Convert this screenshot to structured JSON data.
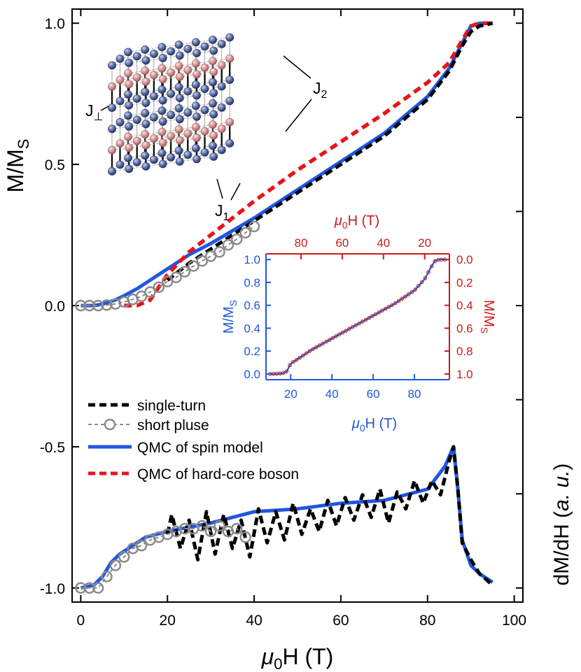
{
  "chart_data": [
    {
      "type": "line",
      "panel": "main",
      "xlabel_mu": "μ",
      "xlabel_sub": "0",
      "xlabel_rest": "H (T)",
      "ylabel_main": "M/M",
      "ylabel_sub": "S",
      "ylabel_right": "dM/dH (",
      "ylabel_right_italic": "a. u.",
      "ylabel_right_close": ")",
      "xlim": [
        -2,
        102
      ],
      "ylim": [
        -1.05,
        1.05
      ],
      "xticks": [
        0,
        20,
        40,
        60,
        80,
        100
      ],
      "xtick_labels": [
        "0",
        "20",
        "40",
        "60",
        "80",
        "100"
      ],
      "yticks": [
        1.0,
        0.5,
        0.0,
        -0.5,
        -1.0
      ],
      "ytick_labels": [
        "1.0",
        "0.5",
        "0.0",
        "-0.5",
        "-1.0"
      ],
      "legend": [
        {
          "label": "single-turn",
          "color": "#000000",
          "style": "dashed"
        },
        {
          "label": "short pluse",
          "color": "#8a8a8a",
          "style": "dashed-circle"
        },
        {
          "label": "QMC of spin model",
          "color": "#1f57e0",
          "style": "solid"
        },
        {
          "label": "QMC of hard-core boson",
          "color": "#e8141b",
          "style": "dashed"
        }
      ],
      "series": [
        {
          "name": "QMC of spin model (M)",
          "color": "#1f57e0",
          "x": [
            0,
            3,
            5,
            8,
            10,
            13,
            16,
            20,
            25,
            30,
            40,
            50,
            60,
            70,
            80,
            85,
            88,
            90,
            92,
            95
          ],
          "y": [
            0,
            0,
            0.005,
            0.02,
            0.035,
            0.06,
            0.09,
            0.13,
            0.18,
            0.22,
            0.31,
            0.41,
            0.51,
            0.61,
            0.74,
            0.84,
            0.93,
            0.99,
            1.0,
            1.0
          ]
        },
        {
          "name": "QMC of hard-core boson (M)",
          "color": "#e8141b",
          "x": [
            10,
            13,
            16,
            20,
            25,
            30,
            40,
            50,
            60,
            70,
            80,
            85,
            88,
            90,
            92,
            95
          ],
          "y": [
            0,
            0,
            0.02,
            0.11,
            0.19,
            0.25,
            0.37,
            0.48,
            0.58,
            0.68,
            0.79,
            0.86,
            0.94,
            0.99,
            1.0,
            1.0
          ]
        },
        {
          "name": "single-turn (M)",
          "color": "#000000",
          "x": [
            20,
            25,
            30,
            40,
            50,
            60,
            70,
            80,
            85,
            88,
            90,
            92,
            95
          ],
          "y": [
            0.09,
            0.15,
            0.2,
            0.3,
            0.4,
            0.5,
            0.6,
            0.73,
            0.83,
            0.92,
            0.97,
            0.99,
            1.0
          ]
        },
        {
          "name": "short pluse (M)",
          "color": "#8a8a8a",
          "x": [
            0,
            2,
            4,
            6,
            8,
            10,
            12,
            14,
            16,
            18,
            20,
            22,
            24,
            26,
            28,
            30,
            32,
            34,
            36,
            38,
            40
          ],
          "y": [
            0,
            0,
            0,
            0.002,
            0.006,
            0.013,
            0.022,
            0.033,
            0.048,
            0.065,
            0.085,
            0.1,
            0.12,
            0.14,
            0.158,
            0.175,
            0.19,
            0.215,
            0.235,
            0.258,
            0.28
          ]
        },
        {
          "name": "QMC of spin model (dM/dH)",
          "color": "#1f57e0",
          "x": [
            0,
            3,
            5,
            7,
            9,
            12,
            15,
            20,
            30,
            40,
            50,
            60,
            70,
            80,
            84,
            86,
            87,
            88,
            90,
            92,
            95
          ],
          "y": [
            -1.0,
            -0.99,
            -0.96,
            -0.91,
            -0.88,
            -0.85,
            -0.82,
            -0.8,
            -0.77,
            -0.73,
            -0.72,
            -0.7,
            -0.69,
            -0.65,
            -0.57,
            -0.5,
            -0.65,
            -0.83,
            -0.92,
            -0.95,
            -0.98
          ]
        },
        {
          "name": "single-turn (dM/dH)",
          "color": "#000000",
          "x": [
            20,
            21,
            23,
            25,
            27,
            29,
            31,
            33,
            35,
            37,
            39,
            41,
            43,
            45,
            47,
            49,
            51,
            53,
            55,
            57,
            59,
            61,
            63,
            65,
            67,
            69,
            71,
            73,
            75,
            77,
            79,
            81,
            83,
            85,
            86,
            87,
            88,
            90,
            92,
            95
          ],
          "y": [
            -0.81,
            -0.74,
            -0.86,
            -0.76,
            -0.9,
            -0.73,
            -0.88,
            -0.74,
            -0.86,
            -0.76,
            -0.89,
            -0.72,
            -0.84,
            -0.73,
            -0.83,
            -0.7,
            -0.81,
            -0.72,
            -0.8,
            -0.69,
            -0.78,
            -0.68,
            -0.76,
            -0.67,
            -0.75,
            -0.65,
            -0.77,
            -0.66,
            -0.72,
            -0.62,
            -0.7,
            -0.62,
            -0.67,
            -0.55,
            -0.5,
            -0.65,
            -0.84,
            -0.9,
            -0.95,
            -0.99
          ]
        },
        {
          "name": "short pluse (dM/dH)",
          "color": "#8a8a8a",
          "x": [
            0,
            2,
            4,
            6,
            8,
            10,
            12,
            14,
            16,
            18,
            20,
            22,
            24,
            26,
            28,
            30,
            32,
            34,
            36,
            38
          ],
          "y": [
            -1.0,
            -1.0,
            -1.0,
            -0.96,
            -0.92,
            -0.89,
            -0.86,
            -0.85,
            -0.83,
            -0.82,
            -0.81,
            -0.8,
            -0.79,
            -0.79,
            -0.78,
            -0.8,
            -0.78,
            -0.8,
            -0.79,
            -0.82
          ]
        }
      ]
    },
    {
      "type": "scatter",
      "panel": "inset",
      "xlabel_mu": "μ",
      "xlabel_sub": "0",
      "xlabel_rest": "H (T)",
      "top_xlabel_mu": "μ",
      "top_xlabel_sub": "0",
      "top_xlabel_rest": "H (T)",
      "ylabel_left": "M/M",
      "ylabel_left_sub": "S",
      "ylabel_right": "M/M",
      "ylabel_right_sub": "S",
      "xlim": [
        8,
        97
      ],
      "ylim": [
        -0.05,
        1.05
      ],
      "xticks": [
        20,
        40,
        60,
        80
      ],
      "xtick_labels": [
        "20",
        "40",
        "60",
        "80"
      ],
      "top_xticks": [
        80,
        60,
        40,
        20
      ],
      "top_xtick_labels": [
        "80",
        "60",
        "40",
        "20"
      ],
      "left_yticks": [
        0.0,
        0.2,
        0.4,
        0.6,
        0.8,
        1.0
      ],
      "left_ytick_labels": [
        "0.0",
        "0.2",
        "0.4",
        "0.6",
        "0.8",
        "1.0"
      ],
      "right_yticks": [
        0.0,
        0.2,
        0.4,
        0.6,
        0.8,
        1.0
      ],
      "right_ytick_labels": [
        "0.0",
        "0.2",
        "0.4",
        "0.6",
        "0.8",
        "1.0"
      ],
      "left_color": "#1f57e0",
      "right_color": "#cc1a1a",
      "series": [
        {
          "name": "M (blue)",
          "color": "#1f57e0",
          "x": [
            10,
            13,
            16,
            18,
            20,
            25,
            30,
            40,
            50,
            60,
            70,
            80,
            85,
            88,
            90,
            92,
            95
          ],
          "y": [
            0,
            0,
            0.005,
            0.02,
            0.09,
            0.15,
            0.21,
            0.31,
            0.41,
            0.51,
            0.61,
            0.73,
            0.83,
            0.93,
            0.99,
            1.0,
            1.0
          ]
        },
        {
          "name": "M (red, mirrored)",
          "color": "#b51f1f",
          "x": [
            10,
            13,
            16,
            18,
            20,
            25,
            30,
            40,
            50,
            60,
            70,
            80,
            85,
            88,
            90,
            92,
            95
          ],
          "y": [
            0,
            0.002,
            0.007,
            0.022,
            0.09,
            0.15,
            0.21,
            0.31,
            0.41,
            0.51,
            0.61,
            0.73,
            0.83,
            0.93,
            0.985,
            1.0,
            1.0
          ]
        }
      ]
    }
  ],
  "lattice_labels": {
    "j2": "J",
    "j2_sub": "2",
    "j_perp": "J",
    "j_perp_mark": "⊥",
    "j1": "J",
    "j1_sub": "1"
  }
}
